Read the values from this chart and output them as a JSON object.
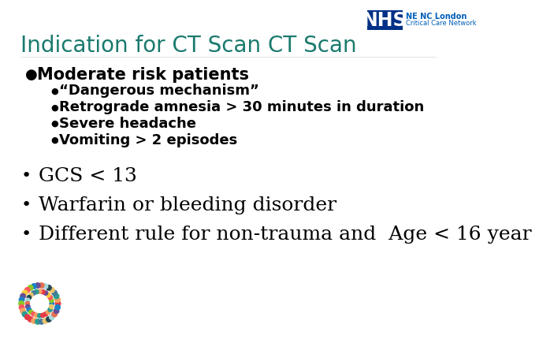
{
  "title": "Indication for CT Scan CT Scan",
  "title_color": "#1a7a6e",
  "title_fontsize": 20,
  "background_color": "#ffffff",
  "nhs_box_color": "#003087",
  "nhs_text": "NHS",
  "nhs_subtitle1": "NE NC London",
  "nhs_subtitle2": "Critical Care Network",
  "nhs_text_color": "#005eb8",
  "bullet1_text": "Moderate risk patients",
  "bullet1_fontsize": 15,
  "sub_bullets": [
    "“Dangerous mechanism”",
    "Retrograde amnesia > 30 minutes in duration",
    "Severe headache",
    "Vomiting > 2 episodes"
  ],
  "sub_bullet_fontsize": 13,
  "open_bullets": [
    "GCS < 13",
    "Warfarin or bleeding disorder",
    "Different rule for non-trauma and  Age < 16 year"
  ],
  "open_bullet_fontsize": 18,
  "text_color": "#000000",
  "bullet_color": "#000000",
  "logo_colors_outer": [
    "#e63946",
    "#f4a261",
    "#2a9d8f",
    "#457b9d",
    "#e9c46a",
    "#264653",
    "#a8dadc",
    "#e76f51",
    "#6a4c93",
    "#1982c4",
    "#8ac926",
    "#ff595e",
    "#ffca3a",
    "#6a4c93",
    "#1982c4",
    "#8ac926",
    "#ff595e",
    "#f4a261",
    "#2a9d8f",
    "#e63946",
    "#e63946",
    "#f4a261",
    "#2a9d8f",
    "#457b9d",
    "#e9c46a",
    "#264653",
    "#a8dadc",
    "#e76f51",
    "#6a4c93",
    "#1982c4"
  ],
  "logo_colors_mid": [
    "#1982c4",
    "#8ac926",
    "#ff595e",
    "#ffca3a",
    "#6a4c93",
    "#e63946",
    "#f4a261",
    "#2a9d8f",
    "#457b9d",
    "#e9c46a",
    "#264653",
    "#a8dadc",
    "#e76f51",
    "#6a4c93",
    "#1982c4",
    "#8ac926",
    "#ff595e",
    "#f4a261",
    "#2a9d8f",
    "#e63946",
    "#e63946",
    "#f4a261",
    "#2a9d8f",
    "#e9c46a"
  ]
}
